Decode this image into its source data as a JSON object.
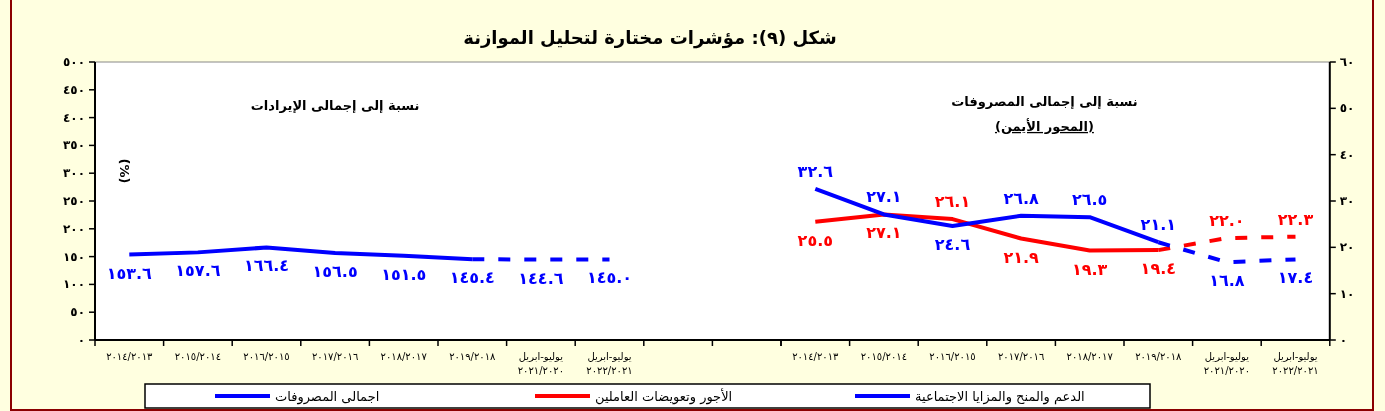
{
  "chart_data": [
    {
      "type": "line",
      "title": "شكل (٩):  مؤشرات مختارة لتحليل الموازنة",
      "ylabel": "(%)",
      "annotations": [
        "نسبة إلى  إجمالى الإيرادات"
      ],
      "categories": [
        "٢٠١٤/٢٠١٣",
        "٢٠١٥/٢٠١٤",
        "٢٠١٦/٢٠١٥",
        "٢٠١٧/٢٠١٦",
        "٢٠١٨/٢٠١٧",
        "٢٠١٩/٢٠١٨",
        "يوليو-ابريل ٢٠٢١/٢٠٢٠",
        "يوليو-ابريل ٢٠٢٢/٢٠٢١"
      ],
      "ylim": [
        0,
        500
      ],
      "yticks": [
        {
          "value": 0,
          "label": "٠"
        },
        {
          "value": 50,
          "label": "٥٠"
        },
        {
          "value": 100,
          "label": "١٠٠"
        },
        {
          "value": 150,
          "label": "١٥٠"
        },
        {
          "value": 200,
          "label": "٢٠٠"
        },
        {
          "value": 250,
          "label": "٢٥٠"
        },
        {
          "value": 300,
          "label": "٣٠٠"
        },
        {
          "value": 350,
          "label": "٣٥٠"
        },
        {
          "value": 400,
          "label": "٤٠٠"
        },
        {
          "value": 450,
          "label": "٤٥٠"
        },
        {
          "value": 500,
          "label": "٥٠٠"
        }
      ],
      "legend": "bottom",
      "series": [
        {
          "name": "اجمالى المصروفات",
          "color": "#0000ff",
          "values": [
            153.6,
            157.6,
            166.4,
            156.5,
            151.5,
            145.4,
            null,
            null
          ],
          "value_labels": [
            "١٥٣.٦",
            "١٥٧.٦",
            "١٦٦.٤",
            "١٥٦.٥",
            "١٥١.٥",
            "١٤٥.٤",
            null,
            null
          ]
        },
        {
          "color": "#0000ff",
          "line_style": "dashed",
          "values": [
            null,
            null,
            null,
            null,
            null,
            145.4,
            144.6,
            145.0
          ],
          "value_labels": [
            null,
            null,
            null,
            null,
            null,
            null,
            "١٤٤.٦",
            "١٤٥.٠"
          ]
        }
      ]
    },
    {
      "type": "line",
      "annotations": [
        "نسبة إلى  إجمالى المصروفات",
        "(المحور الأيمن)"
      ],
      "categories": [
        "٢٠١٤/٢٠١٣",
        "٢٠١٥/٢٠١٤",
        "٢٠١٦/٢٠١٥",
        "٢٠١٧/٢٠١٦",
        "٢٠١٨/٢٠١٧",
        "٢٠١٩/٢٠١٨",
        "يوليو-ابريل ٢٠٢١/٢٠٢٠",
        "يوليو-ابريل ٢٠٢٢/٢٠٢١"
      ],
      "ylim": [
        0,
        60
      ],
      "yticks": [
        {
          "value": 0,
          "label": "٠"
        },
        {
          "value": 10,
          "label": "١٠"
        },
        {
          "value": 20,
          "label": "٢٠"
        },
        {
          "value": 30,
          "label": "٣٠"
        },
        {
          "value": 40,
          "label": "٤٠"
        },
        {
          "value": 50,
          "label": "٥٠"
        },
        {
          "value": 60,
          "label": "٦٠"
        }
      ],
      "legend": "bottom",
      "series": [
        {
          "name": "الأجور وتعويضات العاملين",
          "color": "#ff0000",
          "values": [
            25.5,
            27.1,
            26.1,
            21.9,
            19.3,
            19.4,
            null,
            null
          ],
          "value_labels": [
            "٢٥.٥",
            "٢٧.١",
            "٢٦.١",
            "٢١.٩",
            "١٩.٣",
            "١٩.٤",
            null,
            null
          ]
        },
        {
          "color": "#ff0000",
          "line_style": "dashed",
          "values": [
            null,
            null,
            null,
            null,
            null,
            19.4,
            22.0,
            22.3
          ],
          "value_labels": [
            null,
            null,
            null,
            null,
            null,
            null,
            "٢٢.٠",
            "٢٢.٣"
          ]
        },
        {
          "name": "الدعم والمنح والمزايا الاجتماعية",
          "color": "#0000ff",
          "values": [
            32.6,
            27.1,
            24.6,
            26.8,
            26.5,
            21.1,
            null,
            null
          ],
          "value_labels": [
            "٣٢.٦",
            "٢٧.١",
            "٢٤.٦",
            "٢٦.٨",
            "٢٦.٥",
            "٢١.١",
            null,
            null
          ]
        },
        {
          "color": "#0000ff",
          "line_style": "dashed",
          "values": [
            null,
            null,
            null,
            null,
            null,
            21.1,
            16.8,
            17.4
          ],
          "value_labels": [
            null,
            null,
            null,
            null,
            null,
            null,
            "١٦.٨",
            "١٧.٤"
          ]
        }
      ]
    }
  ]
}
